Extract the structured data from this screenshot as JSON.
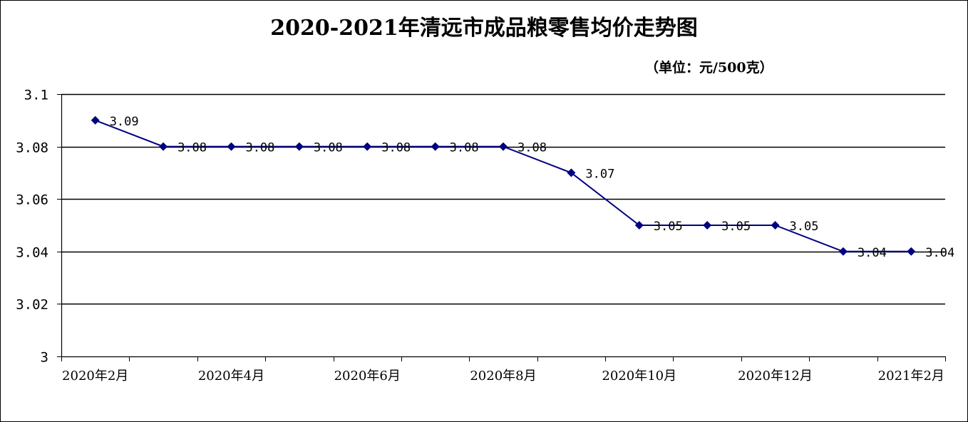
{
  "chart_data": {
    "type": "line",
    "title": "2020-2021年清远市成品粮零售均价走势图",
    "unit": "（单位：元/500克）",
    "x": [
      "2020年2月",
      "2020年3月",
      "2020年4月",
      "2020年5月",
      "2020年6月",
      "2020年7月",
      "2020年8月",
      "2020年9月",
      "2020年10月",
      "2020年11月",
      "2020年12月",
      "2021年1月",
      "2021年2月"
    ],
    "values": [
      3.09,
      3.08,
      3.08,
      3.08,
      3.08,
      3.08,
      3.08,
      3.07,
      3.05,
      3.05,
      3.05,
      3.04,
      3.04
    ],
    "data_labels": [
      "3.09",
      "3.08",
      "3.08",
      "3.08",
      "3.08",
      "3.08",
      "3.08",
      "3.07",
      "3.05",
      "3.05",
      "3.05",
      "3.04",
      "3.04"
    ],
    "x_tick_labels": [
      "2020年2月",
      "2020年4月",
      "2020年6月",
      "2020年8月",
      "2020年10月",
      "2020年12月",
      "2021年2月"
    ],
    "y_tick_labels": [
      "3",
      "3.02",
      "3.04",
      "3.06",
      "3.08",
      "3.1"
    ],
    "ylim": [
      3.0,
      3.1
    ],
    "y_ticks": [
      3.0,
      3.02,
      3.04,
      3.06,
      3.08,
      3.1
    ],
    "grid": true,
    "legend": "none",
    "colors": {
      "line": "#000080",
      "marker": "#000080",
      "grid": "#000000"
    }
  }
}
